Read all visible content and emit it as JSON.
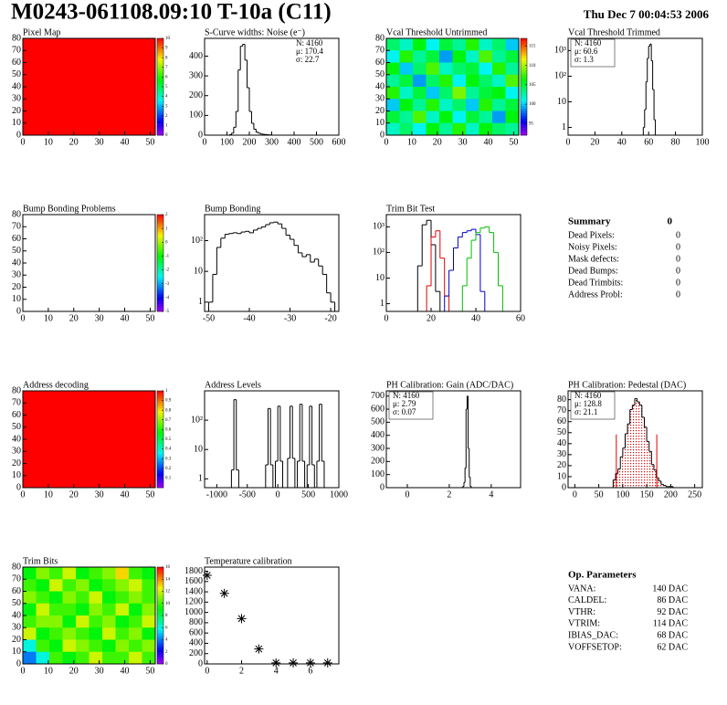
{
  "header": {
    "title": "M0243-061108.09:10 T-10a (C11)",
    "date": "Thu Dec  7 00:04:53 2006"
  },
  "chart_data": [
    {
      "type": "heatmap",
      "title": "Pixel Map",
      "xlim": [
        0,
        52
      ],
      "xticks": [
        0,
        10,
        20,
        30,
        40,
        50
      ],
      "ylim": [
        0,
        80
      ],
      "yticks": [
        0,
        10,
        20,
        30,
        40,
        50,
        60,
        70,
        80
      ],
      "zlim": [
        0,
        10
      ],
      "zticks": [
        0,
        1,
        2,
        3,
        4,
        5,
        6,
        7,
        8,
        9,
        10
      ],
      "z": [
        [
          10
        ]
      ]
    },
    {
      "type": "histogram",
      "title": "S-Curve widths: Noise (e⁻)",
      "xlim": [
        0,
        600
      ],
      "xticks": [
        0,
        100,
        200,
        300,
        400,
        500,
        600
      ],
      "ylim": [
        0,
        490
      ],
      "yticks": [
        0,
        100,
        200,
        300,
        400
      ],
      "color": "#000000",
      "bins": [
        100,
        110,
        120,
        130,
        140,
        150,
        160,
        170,
        180,
        190,
        200,
        210,
        220,
        230,
        240,
        250,
        260,
        270,
        280,
        290,
        300,
        310
      ],
      "values": [
        0,
        2,
        10,
        40,
        120,
        330,
        450,
        460,
        380,
        240,
        120,
        60,
        30,
        15,
        10,
        6,
        4,
        3,
        2,
        1,
        0
      ],
      "stats": [
        "N: 4160",
        "μ: 170.4",
        "σ: 22.7"
      ],
      "stats_corner": "top-right"
    },
    {
      "type": "heatmap",
      "title": "Vcal Threshold Untrimmed",
      "xlim": [
        0,
        52
      ],
      "xticks": [
        0,
        10,
        20,
        30,
        40,
        50
      ],
      "ylim": [
        0,
        80
      ],
      "yticks": [
        0,
        10,
        20,
        30,
        40,
        50,
        60,
        70,
        80
      ],
      "zlim": [
        92,
        117
      ],
      "zticks": [
        95,
        100,
        105,
        110,
        115
      ],
      "z": [
        [
          104,
          102,
          106,
          101,
          105,
          103,
          107,
          102,
          104,
          100
        ],
        [
          101,
          107,
          103,
          105,
          99,
          106,
          102,
          108,
          103,
          105
        ],
        [
          106,
          100,
          104,
          108,
          102,
          104,
          105,
          101,
          107,
          103
        ],
        [
          103,
          105,
          99,
          104,
          107,
          101,
          106,
          104,
          102,
          108
        ],
        [
          107,
          102,
          105,
          100,
          104,
          109,
          103,
          105,
          106,
          101
        ],
        [
          100,
          106,
          103,
          107,
          102,
          104,
          100,
          107,
          103,
          105
        ],
        [
          105,
          103,
          108,
          102,
          106,
          101,
          105,
          103,
          99,
          106
        ],
        [
          102,
          104,
          101,
          106,
          103,
          107,
          102,
          106,
          104,
          103
        ]
      ]
    },
    {
      "type": "histogram",
      "title": "Vcal Threshold Trimmed",
      "log": true,
      "xlim": [
        0,
        100
      ],
      "xticks": [
        0,
        20,
        40,
        60,
        80,
        100
      ],
      "ylim": [
        0.5,
        3000
      ],
      "yticks": [
        1,
        10,
        {
          "value": 100,
          "label": "10²"
        },
        {
          "value": 1000,
          "label": "10³"
        }
      ],
      "color": "#000000",
      "bins": [
        54,
        55,
        56,
        57,
        58,
        59,
        60,
        61,
        62,
        63,
        64,
        65,
        66,
        67,
        68
      ],
      "values": [
        0,
        0,
        1,
        5,
        60,
        500,
        1500,
        1800,
        400,
        30,
        2,
        0,
        0,
        0
      ],
      "stats": [
        "N: 4160",
        "μ: 60.6",
        "σ:  1.3"
      ],
      "stats_corner": "top-left"
    },
    {
      "type": "heatmap",
      "title": "Bump Bonding Problems",
      "xlim": [
        0,
        52
      ],
      "xticks": [
        0,
        10,
        20,
        30,
        40,
        50
      ],
      "ylim": [
        0,
        80
      ],
      "yticks": [
        0,
        10,
        20,
        30,
        40,
        50,
        60,
        70,
        80
      ],
      "zlim": [
        -5,
        2
      ],
      "zticks": [
        -5,
        -4,
        -3,
        -2,
        -1,
        0,
        1,
        2
      ],
      "z": []
    },
    {
      "type": "histogram",
      "title": "Bump Bonding",
      "log": true,
      "xlim": [
        -51,
        -18
      ],
      "xticks": [
        -50,
        -40,
        -30,
        -20
      ],
      "ylim": [
        0.5,
        700
      ],
      "yticks": [
        1,
        10,
        {
          "value": 100,
          "label": "10²"
        }
      ],
      "color": "#000000",
      "bins": [
        -50,
        -49,
        -48,
        -47,
        -46,
        -45,
        -44,
        -43,
        -42,
        -41,
        -40,
        -39,
        -38,
        -37,
        -36,
        -35,
        -34,
        -33,
        -32,
        -31,
        -30,
        -29,
        -28,
        -27,
        -26,
        -25,
        -24,
        -23,
        -22,
        -21,
        -20,
        -19
      ],
      "values": [
        1,
        8,
        60,
        120,
        160,
        170,
        180,
        170,
        190,
        200,
        180,
        220,
        250,
        280,
        330,
        380,
        400,
        350,
        250,
        150,
        110,
        70,
        40,
        30,
        35,
        20,
        25,
        15,
        8,
        2,
        1
      ]
    },
    {
      "type": "histogram",
      "title": "Trim Bit Test",
      "log": true,
      "xlim": [
        0,
        60
      ],
      "xticks": [
        0,
        20,
        40,
        60
      ],
      "ylim": [
        0.5,
        3000
      ],
      "yticks": [
        1,
        10,
        {
          "value": 100,
          "label": "10²"
        },
        {
          "value": 1000,
          "label": "10³"
        }
      ],
      "bins": [
        14,
        16,
        18,
        20,
        22,
        24,
        26,
        28,
        30,
        32,
        34,
        36,
        38,
        40,
        42,
        44,
        46,
        48,
        50,
        52
      ],
      "series": [
        {
          "color": "#000000",
          "values": [
            30,
            1200,
            1800,
            200,
            3,
            0,
            0,
            0,
            0,
            0,
            0,
            0,
            0,
            0,
            0,
            0,
            0,
            0,
            0
          ]
        },
        {
          "color": "#e00000",
          "values": [
            0,
            0,
            5,
            400,
            700,
            60,
            2,
            0,
            0,
            0,
            0,
            0,
            0,
            0,
            0,
            0,
            0,
            0,
            0
          ]
        },
        {
          "color": "#0000cc",
          "values": [
            0,
            0,
            0,
            0,
            0,
            0,
            2,
            20,
            150,
            400,
            600,
            700,
            800,
            500,
            3,
            0,
            0,
            0,
            0
          ]
        },
        {
          "color": "#00c000",
          "values": [
            0,
            0,
            0,
            0,
            0,
            0,
            0,
            0,
            0,
            0,
            5,
            60,
            300,
            600,
            900,
            1000,
            600,
            100,
            5
          ]
        }
      ]
    },
    {
      "type": "heatmap",
      "title": "Address decoding",
      "xlim": [
        0,
        52
      ],
      "xticks": [
        0,
        10,
        20,
        30,
        40,
        50
      ],
      "ylim": [
        0,
        80
      ],
      "yticks": [
        0,
        10,
        20,
        30,
        40,
        50,
        60,
        70,
        80
      ],
      "zlim": [
        0,
        1
      ],
      "zticks": [
        0.1,
        0.2,
        0.3,
        0.4,
        0.5,
        0.6,
        0.7,
        0.8,
        0.9,
        1
      ],
      "z": [
        [
          1
        ]
      ]
    },
    {
      "type": "histogram",
      "title": "Address Levels",
      "log": true,
      "xlim": [
        -1200,
        1000
      ],
      "xticks": [
        -1000,
        -500,
        0,
        500,
        1000
      ],
      "ylim": [
        0.5,
        1000
      ],
      "yticks": [
        1,
        10,
        {
          "value": 100,
          "label": "10²"
        }
      ],
      "color": "#000000",
      "bins": [
        -1000,
        -960,
        -920,
        -880,
        -840,
        -800,
        -760,
        -720,
        -680,
        -640,
        -600,
        -560,
        -520,
        -480,
        -440,
        -400,
        -360,
        -320,
        -280,
        -240,
        -200,
        -160,
        -120,
        -80,
        -40,
        0,
        40,
        80,
        120,
        160,
        200,
        240,
        280,
        320,
        360,
        400,
        440,
        480,
        520,
        560,
        600,
        640,
        680,
        720,
        760,
        800,
        840,
        880,
        920,
        960,
        1000
      ],
      "values": [
        0,
        0,
        0,
        0,
        0,
        0,
        2,
        500,
        2,
        0,
        0,
        0,
        0,
        0,
        0,
        0,
        0,
        0,
        0,
        0,
        3,
        250,
        3,
        0,
        4,
        300,
        4,
        0,
        0,
        5,
        300,
        5,
        0,
        4,
        350,
        4,
        0,
        3,
        300,
        3,
        0,
        4,
        350,
        4,
        0,
        0,
        0,
        0,
        0,
        0
      ]
    },
    {
      "type": "histogram",
      "title": "PH Calibration: Gain (ADC/DAC)",
      "xlim": [
        -1,
        5.4
      ],
      "xticks": [
        0,
        2,
        4
      ],
      "ylim": [
        0,
        740
      ],
      "yticks": [
        0,
        100,
        200,
        300,
        400,
        500,
        600,
        700
      ],
      "color": "#000000",
      "bins": [
        2.6,
        2.65,
        2.7,
        2.75,
        2.8,
        2.85,
        2.9,
        2.95,
        3,
        3.05
      ],
      "values": [
        2,
        10,
        40,
        150,
        600,
        700,
        300,
        80,
        10
      ],
      "stats": [
        "N: 4160",
        "μ: 2.79",
        "σ: 0.07"
      ],
      "stats_corner": "top-left"
    },
    {
      "type": "histogram",
      "title": "PH Calibration: Pedestal (DAC)",
      "xlim": [
        -14,
        266
      ],
      "xticks": [
        0,
        50,
        100,
        150,
        200,
        250
      ],
      "ylim": [
        0,
        88
      ],
      "yticks": [
        0,
        10,
        20,
        30,
        40,
        50,
        60,
        70,
        80
      ],
      "color": "#000000",
      "fill": "#e00000",
      "bins": [
        80,
        85,
        90,
        95,
        100,
        105,
        110,
        115,
        120,
        125,
        130,
        135,
        140,
        145,
        150,
        155,
        160,
        165,
        170,
        175,
        180,
        185,
        190,
        195,
        200,
        205,
        210
      ],
      "values": [
        7,
        13,
        17,
        28,
        36,
        49,
        58,
        71,
        75,
        81,
        78,
        75,
        64,
        55,
        42,
        33,
        21,
        16,
        9,
        6,
        3,
        2,
        1,
        1,
        1,
        0
      ],
      "cut_lines": [
        86.6,
        171
      ],
      "cut_color": "#e00000",
      "stats": [
        "N: 4160",
        "μ: 128.8",
        "σ: 21.1"
      ],
      "stats_colors": [
        "#000000",
        "#e00000",
        "#e00000"
      ],
      "stats_corner": "top-left"
    },
    {
      "type": "heatmap",
      "title": "Trim Bits",
      "xlim": [
        0,
        52
      ],
      "xticks": [
        0,
        10,
        20,
        30,
        40,
        50
      ],
      "ylim": [
        0,
        80
      ],
      "yticks": [
        0,
        10,
        20,
        30,
        40,
        50,
        60,
        70,
        80
      ],
      "zlim": [
        0,
        16
      ],
      "zticks": [
        0,
        2,
        4,
        6,
        8,
        10,
        12,
        14,
        16
      ],
      "z": [
        [
          9,
          11,
          10,
          12,
          9,
          10,
          11,
          13,
          10,
          9
        ],
        [
          10,
          9,
          12,
          10,
          11,
          9,
          10,
          11,
          12,
          10
        ],
        [
          11,
          10,
          9,
          11,
          10,
          12,
          9,
          10,
          11,
          10
        ],
        [
          9,
          12,
          10,
          10,
          9,
          11,
          10,
          12,
          9,
          11
        ],
        [
          10,
          11,
          11,
          9,
          12,
          10,
          11,
          9,
          10,
          12
        ],
        [
          12,
          9,
          10,
          11,
          10,
          9,
          12,
          10,
          11,
          9
        ],
        [
          6,
          10,
          9,
          12,
          11,
          10,
          9,
          11,
          10,
          11
        ],
        [
          4,
          6,
          10,
          9,
          10,
          12,
          10,
          10,
          12,
          10
        ]
      ]
    },
    {
      "type": "scatter",
      "title": "Temperature calibration",
      "xlim": [
        -0.15,
        7.65
      ],
      "xticks": [
        0,
        2,
        4,
        6
      ],
      "ylim": [
        0,
        1880
      ],
      "yticks": [
        0,
        200,
        400,
        600,
        800,
        1000,
        1200,
        1400,
        1600,
        1800
      ],
      "color": "#000000",
      "x": [
        0,
        1,
        2,
        3,
        4,
        5,
        6,
        7
      ],
      "values": [
        1720,
        1370,
        880,
        290,
        20,
        20,
        20,
        20
      ]
    }
  ],
  "summary": {
    "title": "Summary",
    "total": 0,
    "rows": [
      [
        "Dead Pixels:",
        0
      ],
      [
        "Noisy Pixels:",
        0
      ],
      [
        "Mask defects:",
        0
      ],
      [
        "Dead Bumps:",
        0
      ],
      [
        "Dead Trimbits:",
        0
      ],
      [
        "Address Probl:",
        0
      ]
    ]
  },
  "parameters": {
    "title": "Op. Parameters",
    "rows": [
      [
        "VANA:",
        "140 DAC"
      ],
      [
        "CALDEL:",
        "86 DAC"
      ],
      [
        "VTHR:",
        "92 DAC"
      ],
      [
        "VTRIM:",
        "114 DAC"
      ],
      [
        "IBIAS_DAC:",
        "68 DAC"
      ],
      [
        "VOFFSETOP:",
        "62 DAC"
      ]
    ]
  }
}
